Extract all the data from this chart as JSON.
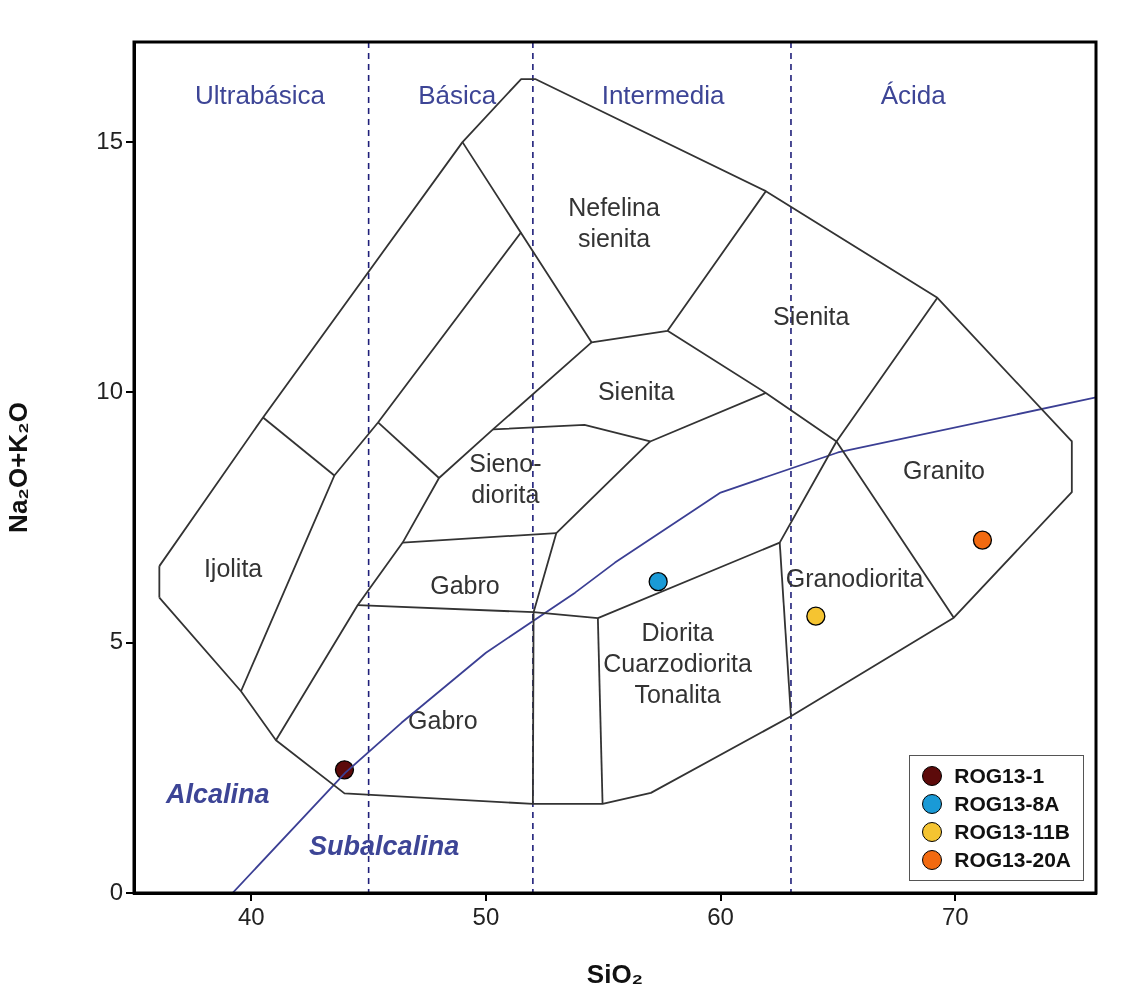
{
  "chart_data": {
    "type": "scatter",
    "xlabel": "SiO₂",
    "ylabel": "Na₂O+K₂O",
    "xlim": [
      35,
      76
    ],
    "ylim": [
      0,
      17
    ],
    "xticks": [
      40,
      50,
      60,
      70
    ],
    "yticks": [
      0,
      5,
      10,
      15
    ],
    "grid": false,
    "legend": "bottom right",
    "series": [
      {
        "type": "line",
        "color": "#333333",
        "marker": "none",
        "x": [
          36.08,
          40.5,
          49.0,
          51.5,
          52.1,
          61.93,
          69.24,
          74.97
        ],
        "values": [
          6.53,
          9.5,
          15.0,
          16.26,
          16.26,
          14.02,
          11.89,
          9.02
        ]
      },
      {
        "type": "line",
        "color": "#333333",
        "marker": "none",
        "x": [
          74.97,
          74.97
        ],
        "values": [
          9.02,
          8.01
        ]
      },
      {
        "type": "line",
        "color": "#333333",
        "marker": "none",
        "x": [
          36.08,
          39.56,
          41.05,
          43.97,
          52.0,
          54.97,
          57.03,
          63.0,
          69.94,
          74.97
        ],
        "values": [
          5.9,
          4.03,
          3.05,
          1.99,
          1.78,
          1.78,
          2.0,
          3.53,
          5.5,
          8.01
        ]
      },
      {
        "type": "line",
        "color": "#333333",
        "marker": "none",
        "x": [
          36.08,
          36.08
        ],
        "values": [
          5.9,
          6.53
        ]
      },
      {
        "type": "line",
        "color": "#333333",
        "marker": "none",
        "x": [
          40.5,
          43.54
        ],
        "values": [
          9.5,
          8.34
        ]
      },
      {
        "type": "line",
        "color": "#333333",
        "marker": "none",
        "x": [
          39.56,
          43.54,
          45.4,
          51.5
        ],
        "values": [
          4.03,
          8.34,
          9.4,
          13.2
        ]
      },
      {
        "type": "line",
        "color": "#333333",
        "marker": "none",
        "x": [
          45.4,
          48.0
        ],
        "values": [
          9.4,
          8.29
        ]
      },
      {
        "type": "line",
        "color": "#333333",
        "marker": "none",
        "x": [
          41.05,
          44.53,
          46.45,
          48.0,
          50.3,
          54.5
        ],
        "values": [
          3.05,
          5.75,
          7.0,
          8.29,
          9.26,
          11.0
        ]
      },
      {
        "type": "line",
        "color": "#333333",
        "marker": "none",
        "x": [
          49.0,
          54.5,
          57.74,
          61.93
        ],
        "values": [
          15.0,
          11.0,
          11.23,
          14.02
        ]
      },
      {
        "type": "line",
        "color": "#333333",
        "marker": "none",
        "x": [
          50.3,
          54.2,
          57.0,
          61.93
        ],
        "values": [
          9.26,
          9.35,
          9.02,
          9.99
        ]
      },
      {
        "type": "line",
        "color": "#333333",
        "marker": "none",
        "x": [
          52.0,
          52.03,
          53.0,
          57.0
        ],
        "values": [
          1.78,
          5.61,
          7.19,
          9.02
        ]
      },
      {
        "type": "line",
        "color": "#333333",
        "marker": "none",
        "x": [
          46.45,
          53.0
        ],
        "values": [
          7.0,
          7.19
        ]
      },
      {
        "type": "line",
        "color": "#333333",
        "marker": "none",
        "x": [
          44.53,
          52.03,
          54.77,
          62.52,
          64.94,
          69.24
        ],
        "values": [
          5.75,
          5.61,
          5.49,
          7.0,
          9.02,
          11.89
        ]
      },
      {
        "type": "line",
        "color": "#333333",
        "marker": "none",
        "x": [
          54.77,
          54.97
        ],
        "values": [
          5.49,
          1.78
        ]
      },
      {
        "type": "line",
        "color": "#333333",
        "marker": "none",
        "x": [
          62.52,
          63.0
        ],
        "values": [
          7.0,
          3.53
        ]
      },
      {
        "type": "line",
        "color": "#333333",
        "marker": "none",
        "x": [
          57.74,
          61.93,
          64.94,
          69.94
        ],
        "values": [
          11.23,
          9.99,
          9.02,
          5.5
        ]
      },
      {
        "type": "line",
        "color": "#3b3f94",
        "marker": "none",
        "x": [
          39.2,
          44.0,
          46.4,
          50.0,
          53.8,
          55.5,
          60.0,
          65.0,
          76.0
        ],
        "values": [
          0,
          2.4,
          3.4,
          4.8,
          6.0,
          6.6,
          8.0,
          8.8,
          9.9
        ]
      },
      {
        "name": "ROG13-1",
        "color": "#5c0a0a",
        "marker": "circle",
        "x": [
          43.97
        ],
        "values": [
          2.46
        ]
      },
      {
        "name": "ROG13-8A",
        "color": "#1a9ad6",
        "marker": "circle",
        "x": [
          57.34
        ],
        "values": [
          6.22
        ]
      },
      {
        "name": "ROG13-11B",
        "color": "#f5c431",
        "marker": "circle",
        "x": [
          64.06
        ],
        "values": [
          5.53
        ]
      },
      {
        "name": "ROG13-20A",
        "color": "#f26a10",
        "marker": "circle",
        "x": [
          71.16
        ],
        "values": [
          7.05
        ]
      }
    ],
    "ref_lines": [
      {
        "axis": "x",
        "value": 45,
        "color": "#1f1f7a",
        "line_style": "dashed"
      },
      {
        "axis": "x",
        "value": 52,
        "color": "#1f1f7a",
        "line_style": "dashed"
      },
      {
        "axis": "x",
        "value": 63,
        "color": "#1f1f7a",
        "line_style": "dashed"
      }
    ],
    "annotations": [
      "Ultrabásica",
      "Básica",
      "Intermedia",
      "Ácida",
      "Ijolita",
      "Gabro",
      "Gabro",
      "Sieno-\ndiorita",
      "Nefelina\nsienita",
      "Sienita",
      "Sienita",
      "Granito",
      "Granodiorita",
      "Diorita\nCuarzodiorita\nTonalita",
      "Alcalina",
      "Subalcalina"
    ]
  }
}
